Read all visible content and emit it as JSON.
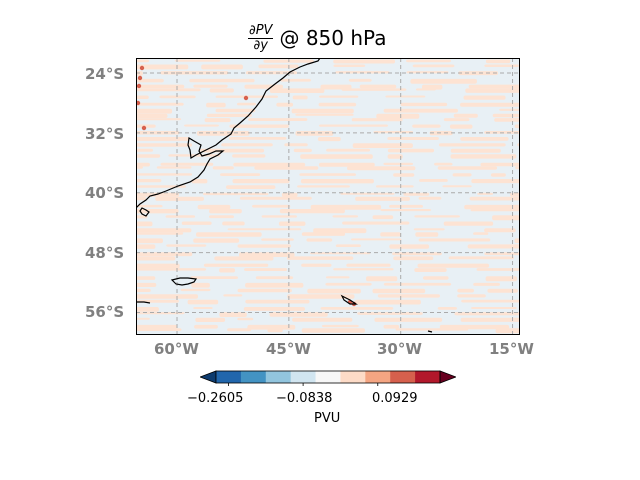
{
  "title": {
    "numerator": "∂PV",
    "denominator": "∂y",
    "suffix": "@ 850 hPa"
  },
  "map": {
    "lat_labels": [
      "24°S",
      "32°S",
      "40°S",
      "48°S",
      "56°S"
    ],
    "lon_labels": [
      "60°W",
      "45°W",
      "30°W",
      "15°W"
    ],
    "lat_values": [
      -24,
      -32,
      -40,
      -48,
      -56
    ],
    "lon_values": [
      -60,
      -45,
      -30,
      -15
    ],
    "extent": {
      "lon_min": -65.5,
      "lon_max": -14,
      "lat_min": -59,
      "lat_max": -22
    },
    "gridlines": true,
    "gridline_style": "dashed",
    "coastlines": true
  },
  "colorbar": {
    "ticks": [
      "−0.2605",
      "−0.0838",
      "0.0929"
    ],
    "label": "PVU",
    "extend": "both",
    "colors": [
      "#0d3b6e",
      "#2166ac",
      "#4393c3",
      "#92c5de",
      "#d1e5f0",
      "#f7f7f7",
      "#fddbc7",
      "#f4a582",
      "#d6604d",
      "#b2182b",
      "#67001f"
    ]
  },
  "colors": {
    "background_field": "#e8f0f5",
    "positive_band": "#fde3d3",
    "strong_positive": "#d6604d",
    "axis_label": "#808080",
    "gridline": "#aaaaaa",
    "coastline": "#000000"
  }
}
